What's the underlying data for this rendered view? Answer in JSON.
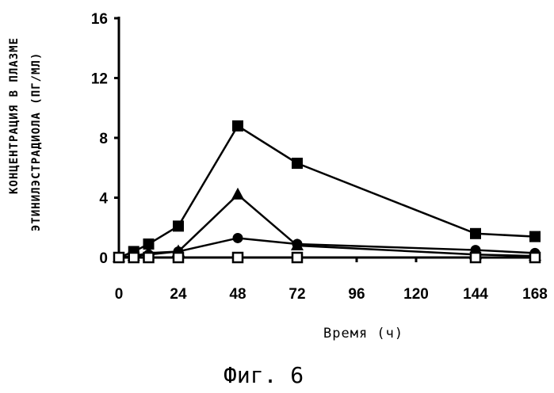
{
  "chart_data": {
    "type": "line",
    "title": "",
    "ylabel_line1": "КОНЦЕНТРАЦИЯ В ПЛАЗМЕ",
    "ylabel_line2": "ЭТИНИЛЭСТРАДИОЛА (ПГ/МЛ)",
    "xlabel": "Время (ч)",
    "figure_label": "Фиг. 6",
    "xlim": [
      0,
      168
    ],
    "ylim": [
      0,
      16
    ],
    "x_ticks": [
      "0",
      "24",
      "48",
      "72",
      "96",
      "120",
      "144",
      "168"
    ],
    "y_ticks": [
      "0",
      "4",
      "8",
      "12",
      "16"
    ],
    "grid": false,
    "series": [
      {
        "marker": "filled-square",
        "x": [
          0,
          6,
          12,
          24,
          48,
          72,
          144,
          168
        ],
        "y": [
          0,
          0.4,
          0.9,
          2.1,
          8.8,
          6.3,
          1.6,
          1.4
        ]
      },
      {
        "marker": "filled-triangle",
        "x": [
          0,
          6,
          12,
          24,
          48,
          72,
          144,
          168
        ],
        "y": [
          0,
          0.1,
          0.3,
          0.4,
          4.2,
          0.8,
          0.2,
          0.1
        ]
      },
      {
        "marker": "filled-circle",
        "x": [
          0,
          6,
          12,
          24,
          48,
          72,
          144,
          168
        ],
        "y": [
          0,
          0.1,
          0.2,
          0.4,
          1.3,
          0.9,
          0.5,
          0.3
        ]
      },
      {
        "marker": "open-square",
        "x": [
          0,
          6,
          12,
          24,
          48,
          72,
          144,
          168
        ],
        "y": [
          0,
          0,
          0,
          0,
          0,
          0,
          0,
          0
        ]
      }
    ]
  }
}
